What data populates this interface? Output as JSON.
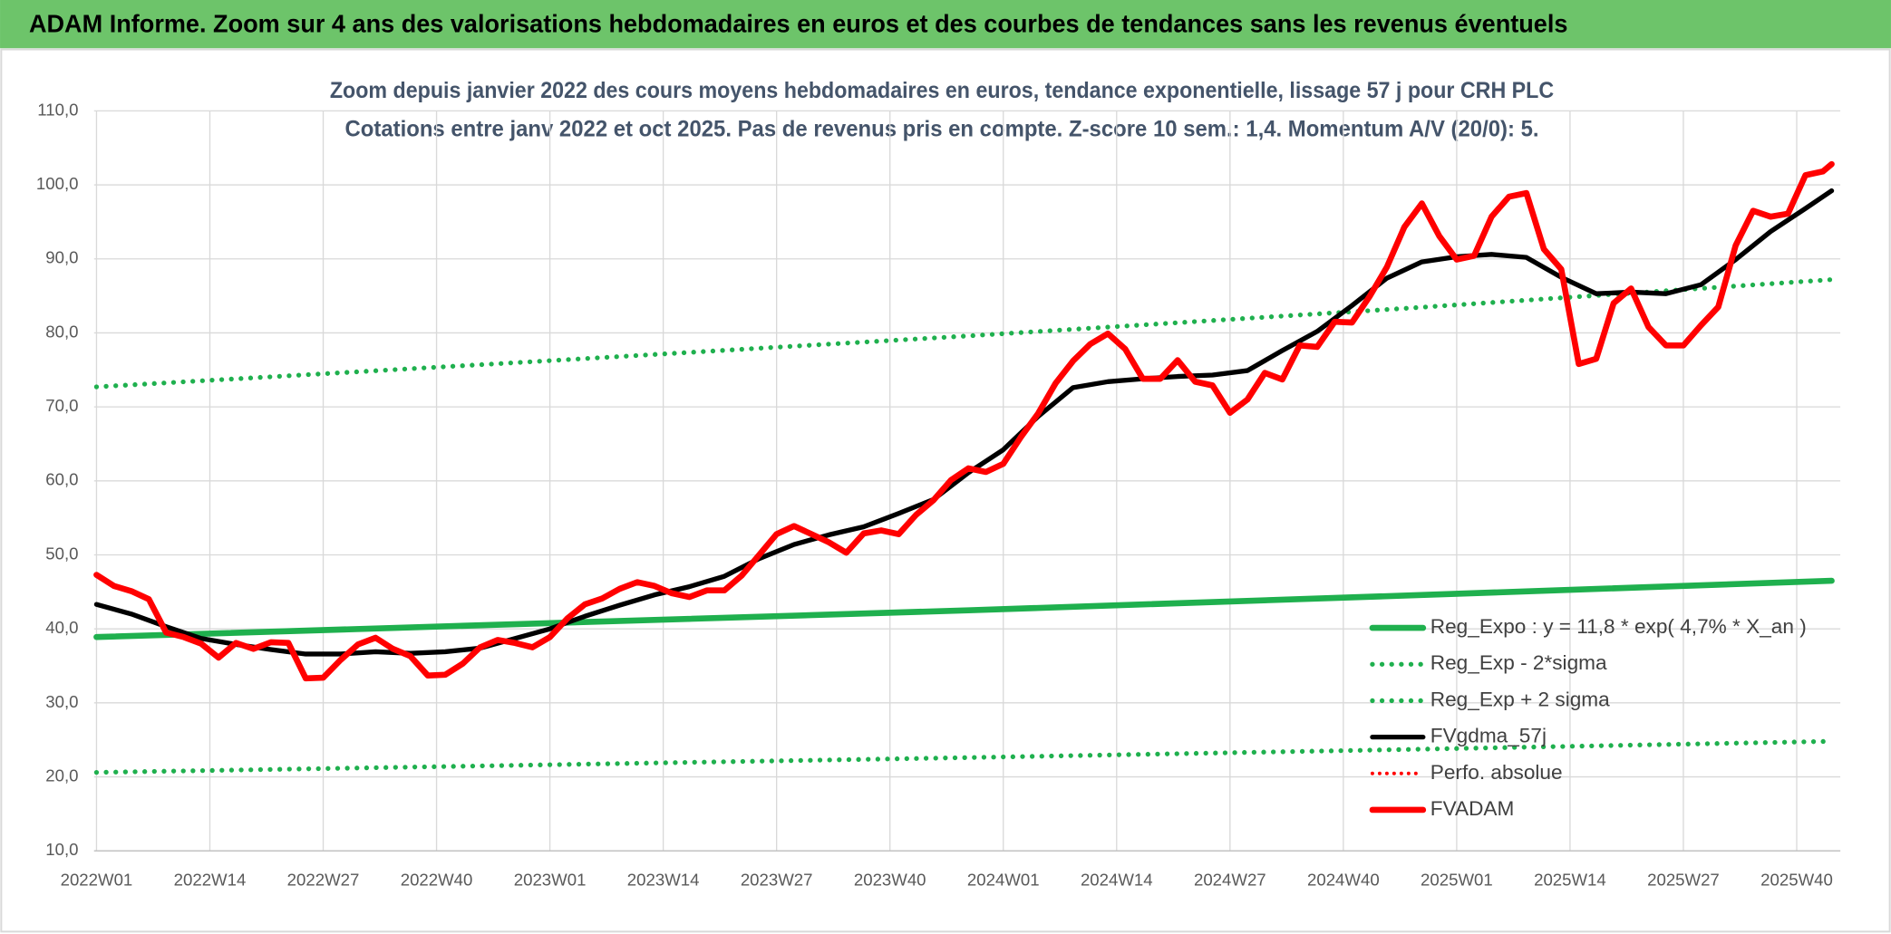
{
  "header": {
    "title": "ADAM Informe. Zoom sur 4 ans des valorisations hebdomadaires en euros et des courbes de tendances sans les revenus éventuels"
  },
  "chart_data": {
    "type": "line",
    "title": "Zoom depuis janvier 2022 des cours moyens hebdomadaires en euros, tendance exponentielle, lissage 57 j pour CRH PLC",
    "subtitle": "Cotations entre janv 2022 et oct 2025. Pas de revenus pris en compte. Z-score 10 sem.: 1,4. Momentum A/V (20/0): 5.",
    "xlim": [
      0,
      200
    ],
    "xticks": [
      {
        "value": 0,
        "label": "2022W01"
      },
      {
        "value": 13,
        "label": "2022W14"
      },
      {
        "value": 26,
        "label": "2022W27"
      },
      {
        "value": 39,
        "label": "2022W40"
      },
      {
        "value": 52,
        "label": "2023W01"
      },
      {
        "value": 65,
        "label": "2023W14"
      },
      {
        "value": 78,
        "label": "2023W27"
      },
      {
        "value": 91,
        "label": "2023W40"
      },
      {
        "value": 104,
        "label": "2024W01"
      },
      {
        "value": 117,
        "label": "2024W14"
      },
      {
        "value": 130,
        "label": "2024W27"
      },
      {
        "value": 143,
        "label": "2024W40"
      },
      {
        "value": 156,
        "label": "2025W01"
      },
      {
        "value": 169,
        "label": "2025W14"
      },
      {
        "value": 182,
        "label": "2025W27"
      },
      {
        "value": 195,
        "label": "2025W40"
      }
    ],
    "ylim": [
      10,
      110
    ],
    "yticks": [
      {
        "value": 10,
        "label": "10,0"
      },
      {
        "value": 20,
        "label": "20,0"
      },
      {
        "value": 30,
        "label": "30,0"
      },
      {
        "value": 40,
        "label": "40,0"
      },
      {
        "value": 50,
        "label": "50,0"
      },
      {
        "value": 60,
        "label": "60,0"
      },
      {
        "value": 70,
        "label": "70,0"
      },
      {
        "value": 80,
        "label": "80,0"
      },
      {
        "value": 90,
        "label": "90,0"
      },
      {
        "value": 100,
        "label": "100,0"
      },
      {
        "value": 110,
        "label": "110,0"
      }
    ],
    "grid": true,
    "legend": "lower right",
    "series": [
      {
        "name": "Reg_Expo : y = 11,8 * exp( 4,7% *  X_an )",
        "color": "#1fb04e",
        "style": "solid",
        "width": 5,
        "x": [
          0,
          50,
          100,
          150,
          199
        ],
        "values": [
          38.9,
          40.7,
          42.5,
          44.5,
          46.5
        ]
      },
      {
        "name": "Reg_Exp - 2*sigma",
        "color": "#1fb04e",
        "style": "dotted",
        "width": 4,
        "x": [
          0,
          50,
          100,
          150,
          199
        ],
        "values": [
          20.6,
          21.6,
          22.6,
          23.7,
          24.8
        ]
      },
      {
        "name": "Reg_Exp + 2 sigma",
        "color": "#1fb04e",
        "style": "dotted",
        "width": 4,
        "x": [
          0,
          50,
          100,
          150,
          199
        ],
        "values": [
          72.7,
          76.1,
          79.6,
          83.3,
          87.2
        ]
      },
      {
        "name": "FVgdma_57j",
        "color": "#000000",
        "style": "solid",
        "width": 4,
        "x": [
          0,
          4,
          8,
          12,
          16,
          20,
          24,
          28,
          32,
          36,
          40,
          44,
          48,
          52,
          56,
          60,
          64,
          68,
          72,
          76,
          80,
          84,
          88,
          92,
          96,
          100,
          104,
          108,
          112,
          116,
          120,
          124,
          128,
          132,
          136,
          140,
          144,
          148,
          152,
          156,
          160,
          164,
          168,
          172,
          176,
          180,
          184,
          188,
          192,
          196,
          199
        ],
        "values": [
          43.3,
          42.0,
          40.3,
          38.7,
          37.9,
          37.2,
          36.6,
          36.6,
          36.9,
          36.7,
          36.9,
          37.4,
          38.7,
          40.0,
          41.7,
          43.2,
          44.6,
          45.7,
          47.1,
          49.5,
          51.4,
          52.7,
          53.8,
          55.6,
          57.5,
          61.1,
          64.2,
          68.7,
          72.6,
          73.4,
          73.8,
          74.1,
          74.3,
          74.9,
          77.6,
          80.2,
          83.7,
          87.4,
          89.6,
          90.3,
          90.6,
          90.2,
          87.5,
          85.3,
          85.5,
          85.3,
          86.5,
          89.9,
          93.7,
          96.8,
          99.2
        ]
      },
      {
        "name": "Perfo. absolue",
        "color": "#ff0000",
        "style": "dotted",
        "width": 3,
        "x": [],
        "values": []
      },
      {
        "name": "FVADAM",
        "color": "#ff0000",
        "style": "solid",
        "width": 5,
        "x": [
          0,
          2,
          4,
          6,
          8,
          10,
          12,
          14,
          16,
          18,
          20,
          22,
          24,
          26,
          28,
          30,
          32,
          34,
          36,
          38,
          40,
          42,
          44,
          46,
          48,
          50,
          52,
          54,
          56,
          58,
          60,
          62,
          64,
          66,
          68,
          70,
          72,
          74,
          76,
          78,
          80,
          82,
          84,
          86,
          88,
          90,
          92,
          94,
          96,
          98,
          100,
          102,
          104,
          106,
          108,
          110,
          112,
          114,
          116,
          118,
          120,
          122,
          124,
          126,
          128,
          130,
          132,
          134,
          136,
          138,
          140,
          142,
          144,
          146,
          148,
          150,
          152,
          154,
          156,
          158,
          160,
          162,
          164,
          166,
          168,
          170,
          172,
          174,
          176,
          178,
          180,
          182,
          184,
          186,
          188,
          190,
          192,
          194,
          196,
          198,
          199
        ],
        "values": [
          47.3,
          45.8,
          45.1,
          44.0,
          39.5,
          38.9,
          38.0,
          36.1,
          38.1,
          37.3,
          38.2,
          38.1,
          33.3,
          33.4,
          35.8,
          37.9,
          38.8,
          37.3,
          36.3,
          33.7,
          33.8,
          35.3,
          37.5,
          38.5,
          38.1,
          37.5,
          38.9,
          41.4,
          43.3,
          44.1,
          45.4,
          46.3,
          45.8,
          44.8,
          44.3,
          45.2,
          45.2,
          47.2,
          50.0,
          52.8,
          53.9,
          52.8,
          51.7,
          50.3,
          52.9,
          53.3,
          52.8,
          55.4,
          57.4,
          60.1,
          61.7,
          61.2,
          62.3,
          65.9,
          69.1,
          73.2,
          76.2,
          78.5,
          79.9,
          77.8,
          73.8,
          73.8,
          76.3,
          73.4,
          72.9,
          69.2,
          71.0,
          74.6,
          73.7,
          78.3,
          78.1,
          81.5,
          81.4,
          84.9,
          88.9,
          94.3,
          97.5,
          93.1,
          89.9,
          90.4,
          95.7,
          98.4,
          98.9,
          91.3,
          88.6,
          75.8,
          76.5,
          84.0,
          86.0,
          80.8,
          78.3,
          78.3,
          81.0,
          83.5,
          91.8,
          96.5,
          95.7,
          96.1,
          101.3,
          101.8,
          102.8
        ]
      }
    ]
  }
}
